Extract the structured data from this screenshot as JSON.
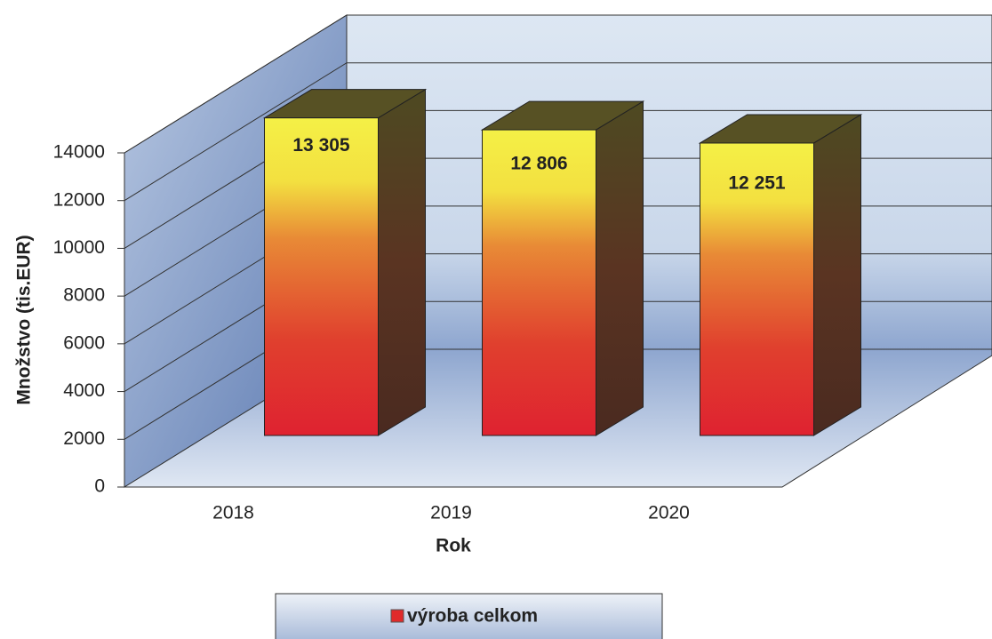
{
  "chart_data": {
    "type": "bar3d",
    "xlabel": "Rok",
    "ylabel": "Množstvo (tis.EUR)",
    "categories": [
      "2018",
      "2019",
      "2020"
    ],
    "series": [
      {
        "name": "výroba celkom",
        "color": "#e02a2a",
        "values": [
          13305,
          12806,
          12251
        ],
        "value_labels": [
          "13 305",
          "12 806",
          "12 251"
        ]
      }
    ],
    "ylim": [
      0,
      14000
    ],
    "yticks": [
      0,
      2000,
      4000,
      6000,
      8000,
      10000,
      12000,
      14000
    ],
    "grid": true,
    "legend": "bottom"
  }
}
